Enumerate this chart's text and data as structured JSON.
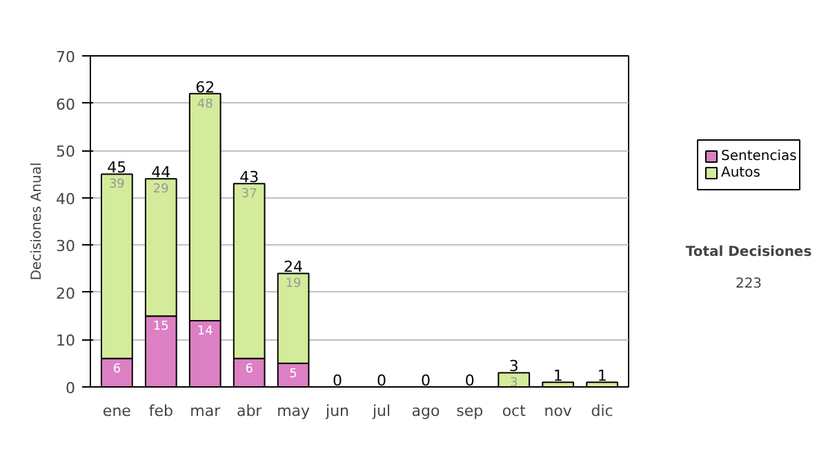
{
  "chart_data": {
    "type": "bar",
    "stacked": true,
    "categories": [
      "ene",
      "feb",
      "mar",
      "abr",
      "may",
      "jun",
      "jul",
      "ago",
      "sep",
      "oct",
      "nov",
      "dic"
    ],
    "ylabel": "Decisiones Anual",
    "series": [
      {
        "name": "Sentencias",
        "color": "#dd7fc4",
        "values": [
          6,
          15,
          14,
          6,
          5,
          0,
          0,
          0,
          0,
          0,
          0,
          0
        ],
        "value_labels": [
          "6",
          "15",
          "14",
          "6",
          "5",
          null,
          null,
          null,
          null,
          null,
          null,
          null
        ]
      },
      {
        "name": "Autos",
        "color": "#d4eb9b",
        "values": [
          39,
          29,
          48,
          37,
          19,
          0,
          0,
          0,
          0,
          3,
          1,
          1
        ],
        "value_labels": [
          "39",
          "29",
          "48",
          "37",
          "19",
          null,
          null,
          null,
          null,
          "3",
          null,
          null
        ]
      }
    ],
    "totals": [
      "45",
      "44",
      "62",
      "43",
      "24",
      "0",
      "0",
      "0",
      "0",
      "3",
      "1",
      "1"
    ],
    "ylim": [
      0,
      70
    ],
    "yticks": [
      0,
      10,
      20,
      30,
      40,
      50,
      60,
      70
    ],
    "grid": "y",
    "legend": "right",
    "annotations": [
      "Total Decisiones",
      "223"
    ]
  }
}
